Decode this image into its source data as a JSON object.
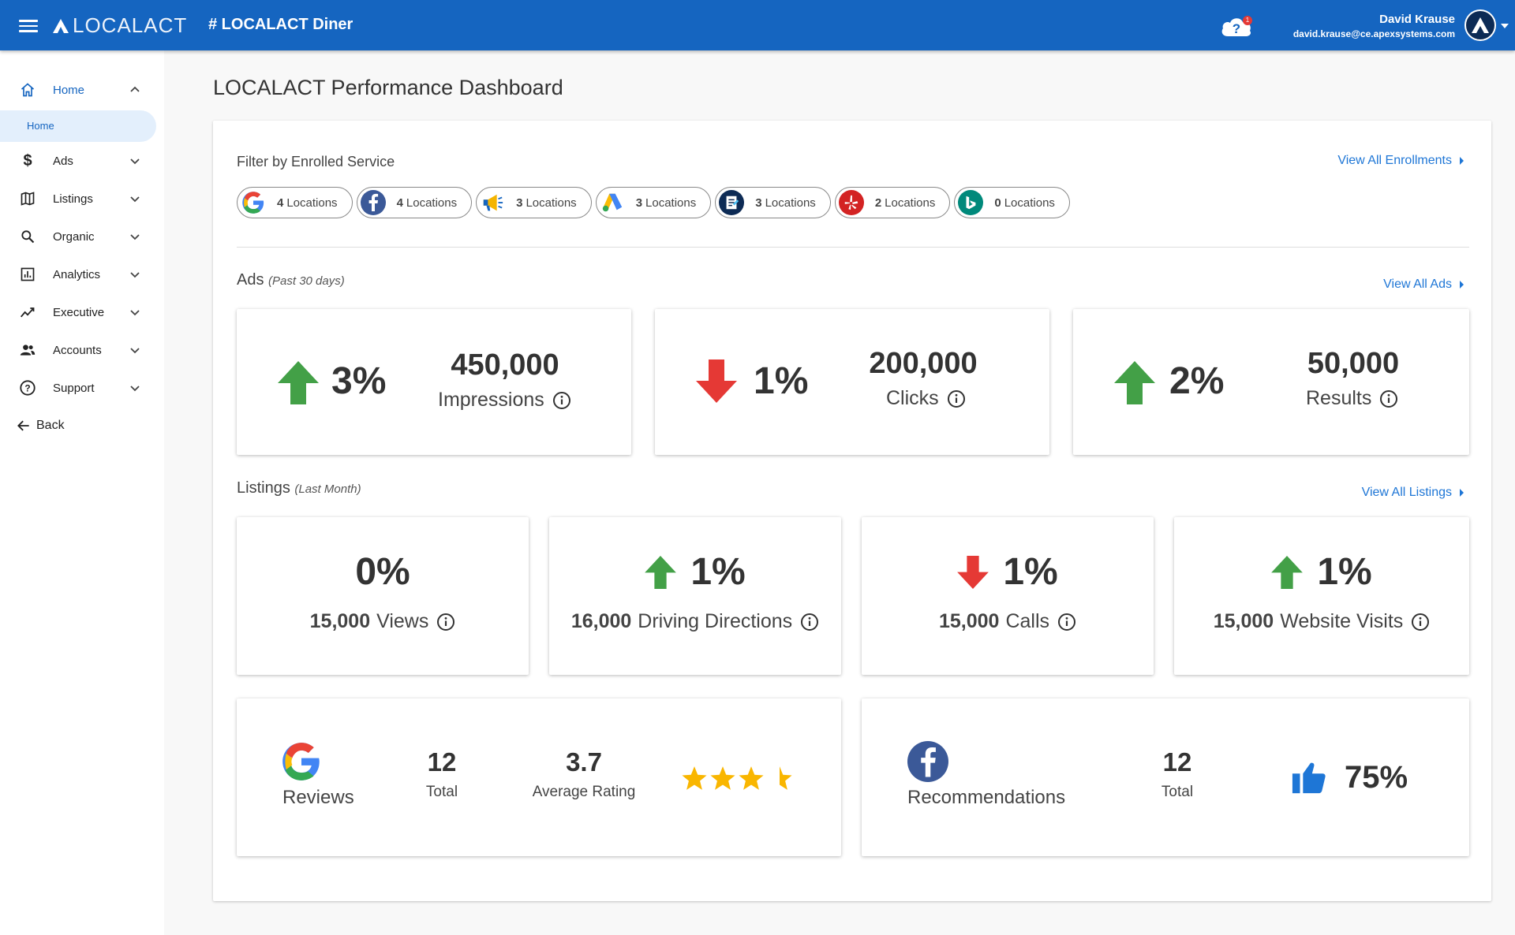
{
  "header": {
    "logo_text": "LOCALACT",
    "business": "# LOCALACT Diner",
    "notification_count": "1",
    "user_name": "David Krause",
    "user_email": "david.krause@ce.apexsystems.com"
  },
  "sidebar": {
    "items": [
      {
        "label": "Home",
        "icon": "home-icon"
      },
      {
        "label": "Ads",
        "icon": "dollar-icon"
      },
      {
        "label": "Listings",
        "icon": "map-icon"
      },
      {
        "label": "Organic",
        "icon": "search-icon"
      },
      {
        "label": "Analytics",
        "icon": "analytics-icon"
      },
      {
        "label": "Executive",
        "icon": "trending-icon"
      },
      {
        "label": "Accounts",
        "icon": "people-icon"
      },
      {
        "label": "Support",
        "icon": "help-icon"
      }
    ],
    "sub_item": "Home",
    "back": "Back"
  },
  "page": {
    "title": "LOCALACT Performance Dashboard"
  },
  "filter": {
    "title": "Filter by Enrolled Service",
    "view_all": "View All Enrollments",
    "chips": [
      {
        "service": "google",
        "count": "4",
        "label": "Locations"
      },
      {
        "service": "facebook",
        "count": "4",
        "label": "Locations"
      },
      {
        "service": "megaphone",
        "count": "3",
        "label": "Locations"
      },
      {
        "service": "google-ads",
        "count": "3",
        "label": "Locations"
      },
      {
        "service": "document",
        "count": "3",
        "label": "Locations"
      },
      {
        "service": "yelp",
        "count": "2",
        "label": "Locations"
      },
      {
        "service": "bing",
        "count": "0",
        "label": "Locations"
      }
    ]
  },
  "ads": {
    "title": "Ads",
    "period": "(Past 30 days)",
    "view_all": "View All Ads",
    "cards": [
      {
        "direction": "up",
        "pct": "3%",
        "value": "450,000",
        "label": "Impressions"
      },
      {
        "direction": "down",
        "pct": "1%",
        "value": "200,000",
        "label": "Clicks"
      },
      {
        "direction": "up",
        "pct": "2%",
        "value": "50,000",
        "label": "Results"
      }
    ]
  },
  "listings": {
    "title": "Listings",
    "period": "(Last Month)",
    "view_all": "View All Listings",
    "cards": [
      {
        "direction": "none",
        "pct": "0%",
        "value": "15,000",
        "label": "Views"
      },
      {
        "direction": "up",
        "pct": "1%",
        "value": "16,000",
        "label": "Driving Directions"
      },
      {
        "direction": "down",
        "pct": "1%",
        "value": "15,000",
        "label": "Calls"
      },
      {
        "direction": "up",
        "pct": "1%",
        "value": "15,000",
        "label": "Website Visits"
      }
    ]
  },
  "reviews": {
    "label": "Reviews",
    "total": "12",
    "total_label": "Total",
    "avg": "3.7",
    "avg_label": "Average Rating",
    "rating": 3.7,
    "star_color": "#f9b600"
  },
  "recommendations": {
    "label": "Recommendations",
    "total": "12",
    "total_label": "Total",
    "pct": "75%"
  },
  "colors": {
    "primary": "#1565c0",
    "link": "#1e76d6",
    "up": "#43a047",
    "down": "#e53935"
  }
}
